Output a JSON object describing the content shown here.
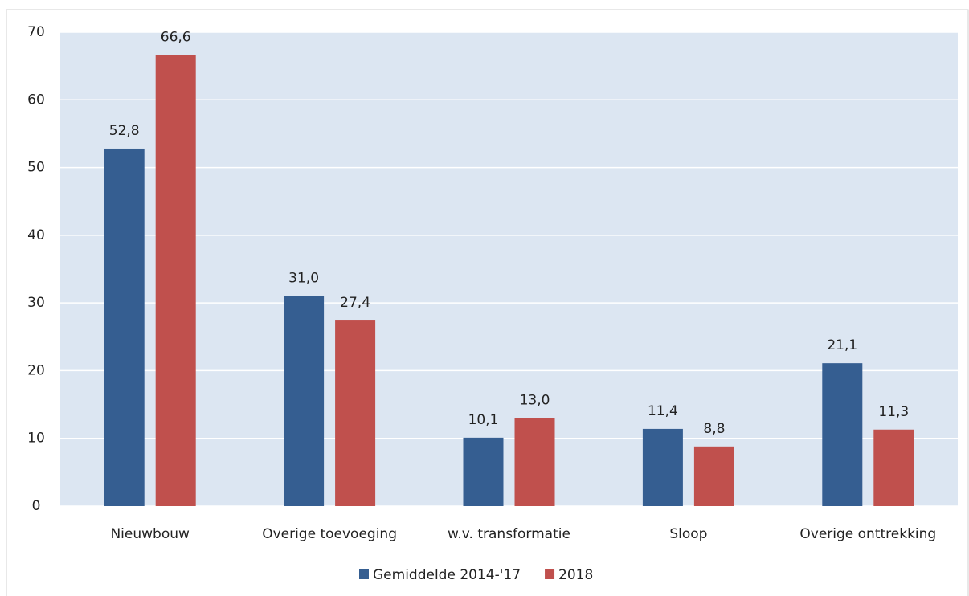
{
  "chart_data": {
    "type": "bar",
    "categories": [
      "Nieuwbouw",
      "Overige toevoeging",
      "w.v. transformatie",
      "Sloop",
      "Overige onttrekking"
    ],
    "series": [
      {
        "name": "Gemiddelde 2014-'17",
        "color": "#355e91",
        "values": [
          52.8,
          31.0,
          10.1,
          11.4,
          21.1
        ],
        "value_labels": [
          "52,8",
          "31,0",
          "10,1",
          "11,4",
          "21,1"
        ]
      },
      {
        "name": "2018",
        "color": "#c0504d",
        "values": [
          66.6,
          27.4,
          13.0,
          8.8,
          11.3
        ],
        "value_labels": [
          "66,6",
          "27,4",
          "13,0",
          "8,8",
          "11,3"
        ]
      }
    ],
    "ylim": [
      0,
      70
    ],
    "yticks": [
      0,
      10,
      20,
      30,
      40,
      50,
      60,
      70
    ],
    "grid": true,
    "legend": "bottom"
  }
}
